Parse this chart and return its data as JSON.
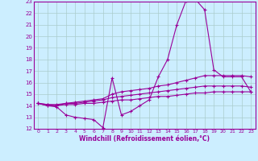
{
  "xlabel": "Windchill (Refroidissement éolien,°C)",
  "ylabel": "",
  "bg_color": "#cceeff",
  "grid_color": "#aacccc",
  "line_color": "#990099",
  "xlim": [
    -0.5,
    23.5
  ],
  "ylim": [
    12,
    23
  ],
  "yticks": [
    12,
    13,
    14,
    15,
    16,
    17,
    18,
    19,
    20,
    21,
    22,
    23
  ],
  "xticks": [
    0,
    1,
    2,
    3,
    4,
    5,
    6,
    7,
    8,
    9,
    10,
    11,
    12,
    13,
    14,
    15,
    16,
    17,
    18,
    19,
    20,
    21,
    22,
    23
  ],
  "series": [
    {
      "x": [
        0,
        1,
        2,
        3,
        4,
        5,
        6,
        7,
        8,
        9,
        10,
        11,
        12,
        13,
        14,
        15,
        16,
        17,
        18,
        19,
        20,
        21,
        22,
        23
      ],
      "y": [
        14.2,
        14.0,
        13.9,
        13.2,
        13.0,
        12.9,
        12.8,
        12.1,
        16.4,
        13.2,
        13.5,
        14.0,
        14.5,
        16.5,
        18.0,
        21.0,
        23.1,
        23.2,
        22.3,
        17.1,
        16.5,
        16.5,
        16.5,
        15.2
      ]
    },
    {
      "x": [
        0,
        1,
        2,
        3,
        4,
        5,
        6,
        7,
        8,
        9,
        10,
        11,
        12,
        13,
        14,
        15,
        16,
        17,
        18,
        19,
        20,
        21,
        22,
        23
      ],
      "y": [
        14.2,
        14.1,
        14.0,
        14.2,
        14.3,
        14.4,
        14.5,
        14.6,
        15.0,
        15.2,
        15.3,
        15.4,
        15.5,
        15.7,
        15.8,
        16.0,
        16.2,
        16.4,
        16.6,
        16.6,
        16.6,
        16.6,
        16.6,
        16.5
      ]
    },
    {
      "x": [
        0,
        1,
        2,
        3,
        4,
        5,
        6,
        7,
        8,
        9,
        10,
        11,
        12,
        13,
        14,
        15,
        16,
        17,
        18,
        19,
        20,
        21,
        22,
        23
      ],
      "y": [
        14.2,
        14.1,
        14.1,
        14.2,
        14.2,
        14.3,
        14.4,
        14.5,
        14.7,
        14.8,
        14.9,
        15.0,
        15.1,
        15.2,
        15.3,
        15.4,
        15.5,
        15.6,
        15.7,
        15.7,
        15.7,
        15.7,
        15.7,
        15.6
      ]
    },
    {
      "x": [
        0,
        1,
        2,
        3,
        4,
        5,
        6,
        7,
        8,
        9,
        10,
        11,
        12,
        13,
        14,
        15,
        16,
        17,
        18,
        19,
        20,
        21,
        22,
        23
      ],
      "y": [
        14.2,
        14.0,
        14.0,
        14.1,
        14.1,
        14.2,
        14.2,
        14.3,
        14.4,
        14.5,
        14.5,
        14.6,
        14.7,
        14.8,
        14.8,
        14.9,
        15.0,
        15.1,
        15.1,
        15.2,
        15.2,
        15.2,
        15.2,
        15.2
      ]
    }
  ]
}
